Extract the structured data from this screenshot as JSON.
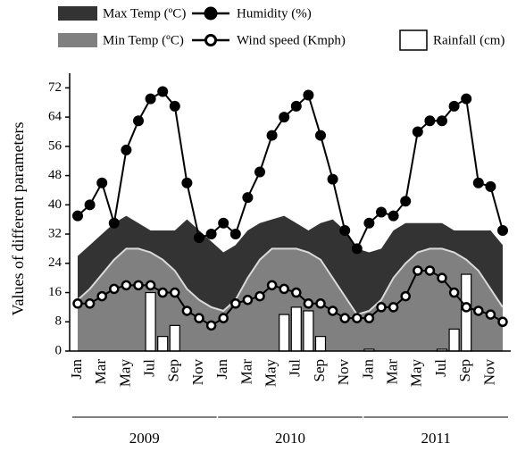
{
  "chart_data": {
    "type": "combo",
    "y_label": "Values of different parameters",
    "categories": [
      "Jan",
      null,
      "Mar",
      null,
      "May",
      null,
      "Jul",
      null,
      "Sep",
      null,
      "Nov",
      null,
      "Jan",
      null,
      "Mar",
      null,
      "May",
      null,
      "Jul",
      null,
      "Sep",
      null,
      "Nov",
      null,
      "Jan",
      null,
      "Mar",
      null,
      "May",
      null,
      "Jul",
      null,
      "Sep",
      null,
      "Nov",
      null
    ],
    "groups": [
      "2009",
      "2010",
      "2011"
    ],
    "ylim": [
      0,
      76
    ],
    "yticks": [
      0,
      8,
      16,
      24,
      32,
      40,
      48,
      56,
      64,
      72
    ],
    "series": [
      {
        "name": "Max Temp (ºC)",
        "type": "area",
        "color": "#333333",
        "values": [
          26,
          29,
          32,
          35,
          37,
          35,
          33,
          33,
          33,
          36,
          33,
          30,
          27,
          29,
          33,
          35,
          36,
          37,
          35,
          33,
          35,
          36,
          33,
          28,
          27,
          28,
          33,
          35,
          35,
          35,
          35,
          33,
          33,
          33,
          33,
          29
        ]
      },
      {
        "name": "Min Temp (ºC)",
        "type": "area",
        "color": "#808080",
        "line_color": "#d9d9d9",
        "values": [
          14,
          17,
          21,
          25,
          28,
          28,
          27,
          25,
          22,
          17,
          14,
          12,
          11,
          14,
          20,
          25,
          28,
          28,
          28,
          27,
          25,
          20,
          15,
          10,
          11,
          14,
          20,
          24,
          27,
          28,
          28,
          27,
          25,
          22,
          17,
          12
        ]
      },
      {
        "name": "Rainfall (cm)",
        "type": "bar",
        "color": "#ffffff",
        "values": [
          0,
          0,
          0,
          0,
          0,
          0,
          16,
          4,
          7,
          0,
          0,
          0,
          0,
          0,
          0,
          0,
          0,
          10,
          12,
          11,
          4,
          0,
          0,
          0,
          0.5,
          0,
          0,
          0,
          0,
          0,
          0.5,
          6,
          21,
          0,
          0,
          0
        ]
      },
      {
        "name": "Humidity (%)",
        "type": "line",
        "color": "#000000",
        "marker": "filled",
        "values": [
          37,
          40,
          46,
          35,
          55,
          63,
          69,
          71,
          67,
          46,
          31,
          32,
          35,
          32,
          42,
          49,
          59,
          64,
          67,
          70,
          59,
          47,
          33,
          28,
          35,
          38,
          37,
          41,
          60,
          63,
          63,
          67,
          69,
          46,
          45,
          33
        ]
      },
      {
        "name": "Wind speed (Kmph)",
        "type": "line",
        "color": "#000000",
        "marker": "open",
        "values": [
          13,
          13,
          15,
          17,
          18,
          18,
          18,
          16,
          16,
          11,
          9,
          7,
          9,
          13,
          14,
          15,
          18,
          17,
          16,
          13,
          13,
          11,
          9,
          9,
          9,
          12,
          12,
          15,
          22,
          22,
          20,
          16,
          12,
          11,
          10,
          8
        ]
      }
    ]
  }
}
